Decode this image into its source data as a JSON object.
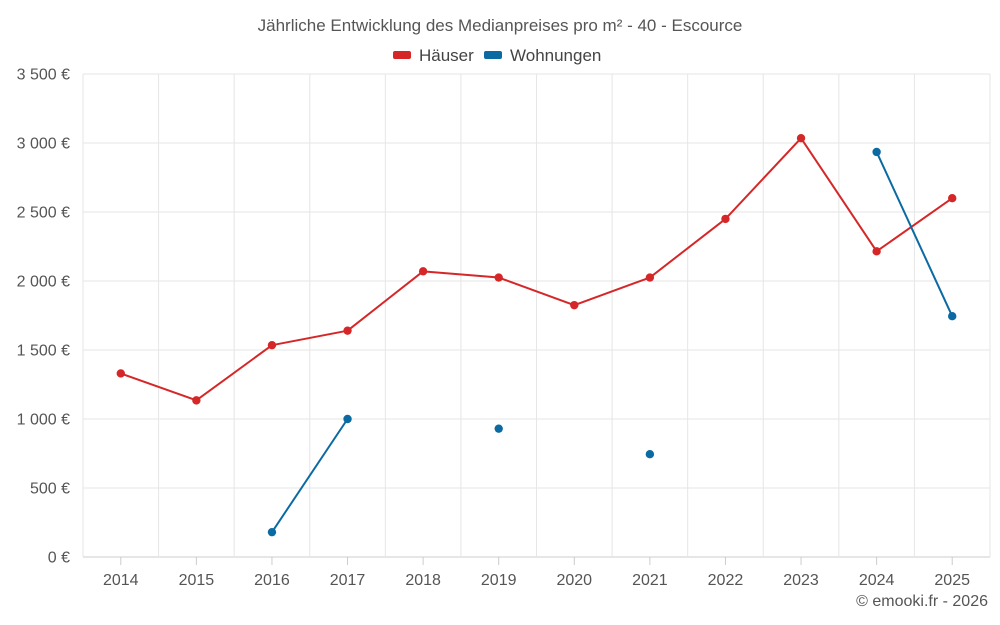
{
  "chart_data": {
    "type": "line",
    "title": "Jährliche Entwicklung des Medianpreises pro m² - 40 - Escource",
    "categories": [
      "2014",
      "2015",
      "2016",
      "2017",
      "2018",
      "2019",
      "2020",
      "2021",
      "2022",
      "2023",
      "2024",
      "2025"
    ],
    "ylim": [
      0,
      3500
    ],
    "yticks": [
      0,
      500,
      1000,
      1500,
      2000,
      2500,
      3000,
      3500
    ],
    "ytick_labels": [
      "0 €",
      "500 €",
      "1 000 €",
      "1 500 €",
      "2 000 €",
      "2 500 €",
      "3 000 €",
      "3 500 €"
    ],
    "xlabel": "",
    "ylabel": "",
    "grid": true,
    "legend_position": "top-center",
    "series": [
      {
        "name": "Häuser",
        "color": "#d62728",
        "values": [
          1330,
          1135,
          1535,
          1640,
          2070,
          2025,
          1825,
          2025,
          2450,
          3035,
          2215,
          2600
        ]
      },
      {
        "name": "Wohnungen",
        "color": "#0b6aa2",
        "values": [
          null,
          null,
          180,
          1000,
          null,
          930,
          null,
          745,
          null,
          null,
          2935,
          1745
        ]
      }
    ]
  },
  "credit": "© emooki.fr - 2026"
}
